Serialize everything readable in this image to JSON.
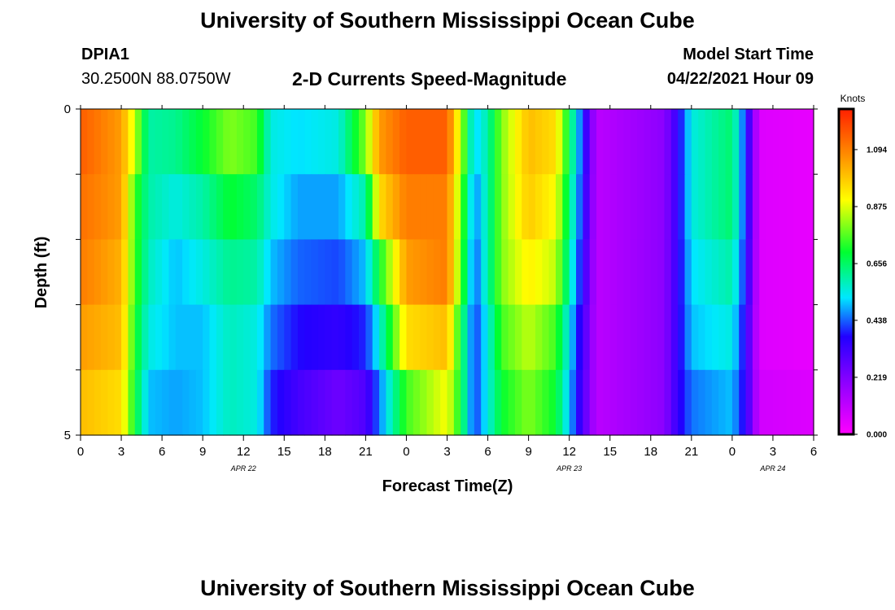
{
  "page": {
    "title_top": "University of Southern Mississippi Ocean Cube",
    "title_bottom": "University of Southern Mississippi Ocean Cube",
    "station_id": "DPIA1",
    "station_coords": "30.2500N  88.0750W",
    "product": "2-D Currents Speed-Magnitude",
    "model_start_label": "Model Start Time",
    "model_start_value": "04/22/2021 Hour 09"
  },
  "colors": {
    "scale": [
      "#ff00ff",
      "#9b00ff",
      "#2200ff",
      "#00e8ff",
      "#00ff30",
      "#ffff00",
      "#ff8c00",
      "#ff2000"
    ]
  },
  "chart_data": {
    "type": "heatmap",
    "xlabel": "Forecast Time(Z)",
    "ylabel": "Depth (ft)",
    "colorbar_label": "Knots",
    "colorbar_ticks": [
      "1.094",
      "0.875",
      "0.656",
      "0.438",
      "0.219",
      "0.000"
    ],
    "colorbar_range": [
      0.0,
      1.25
    ],
    "x_tick_labels": [
      "0",
      "3",
      "6",
      "9",
      "12",
      "15",
      "18",
      "21",
      "0",
      "3",
      "6",
      "9",
      "12",
      "15",
      "18",
      "21",
      "0",
      "3",
      "6"
    ],
    "date_labels": [
      {
        "text": "APR  22",
        "at_tick": 4
      },
      {
        "text": "APR  23",
        "at_tick": 12
      },
      {
        "text": "APR  24",
        "at_tick": 17
      }
    ],
    "y_tick_labels": [
      "0",
      "5"
    ],
    "y_range": [
      0,
      5
    ],
    "hours": 54,
    "depth_levels": 5,
    "keyframes": [
      {
        "h": 0,
        "v": [
          1.15,
          1.12,
          1.1,
          1.05,
          1.0
        ]
      },
      {
        "h": 3,
        "v": [
          1.05,
          1.05,
          1.02,
          1.0,
          0.95
        ]
      },
      {
        "h": 4,
        "v": [
          0.85,
          0.75,
          0.75,
          0.72,
          0.7
        ]
      },
      {
        "h": 5,
        "v": [
          0.6,
          0.6,
          0.58,
          0.55,
          0.5
        ]
      },
      {
        "h": 7,
        "v": [
          0.62,
          0.55,
          0.5,
          0.5,
          0.48
        ]
      },
      {
        "h": 9,
        "v": [
          0.7,
          0.6,
          0.55,
          0.5,
          0.5
        ]
      },
      {
        "h": 11,
        "v": [
          0.8,
          0.7,
          0.62,
          0.58,
          0.58
        ]
      },
      {
        "h": 13,
        "v": [
          0.75,
          0.65,
          0.6,
          0.55,
          0.55
        ]
      },
      {
        "h": 14,
        "v": [
          0.55,
          0.55,
          0.5,
          0.45,
          0.4
        ]
      },
      {
        "h": 16,
        "v": [
          0.52,
          0.48,
          0.44,
          0.38,
          0.32
        ]
      },
      {
        "h": 19,
        "v": [
          0.55,
          0.48,
          0.42,
          0.35,
          0.25
        ]
      },
      {
        "h": 21,
        "v": [
          0.8,
          0.6,
          0.5,
          0.4,
          0.3
        ]
      },
      {
        "h": 22,
        "v": [
          1.05,
          0.95,
          0.7,
          0.55,
          0.45
        ]
      },
      {
        "h": 24,
        "v": [
          1.15,
          1.1,
          1.05,
          0.95,
          0.75
        ]
      },
      {
        "h": 27,
        "v": [
          1.15,
          1.1,
          1.1,
          1.0,
          0.9
        ]
      },
      {
        "h": 28,
        "v": [
          0.85,
          0.8,
          0.78,
          0.7,
          0.7
        ]
      },
      {
        "h": 29,
        "v": [
          0.5,
          0.45,
          0.42,
          0.4,
          0.4
        ]
      },
      {
        "h": 30,
        "v": [
          0.6,
          0.6,
          0.6,
          0.55,
          0.55
        ]
      },
      {
        "h": 31,
        "v": [
          0.8,
          0.8,
          0.8,
          0.75,
          0.7
        ]
      },
      {
        "h": 33,
        "v": [
          1.0,
          0.98,
          0.92,
          0.85,
          0.8
        ]
      },
      {
        "h": 35,
        "v": [
          0.95,
          0.9,
          0.85,
          0.75,
          0.7
        ]
      },
      {
        "h": 37,
        "v": [
          0.4,
          0.38,
          0.35,
          0.32,
          0.3
        ]
      },
      {
        "h": 38,
        "v": [
          0.12,
          0.12,
          0.12,
          0.12,
          0.12
        ]
      },
      {
        "h": 43,
        "v": [
          0.2,
          0.2,
          0.2,
          0.2,
          0.2
        ]
      },
      {
        "h": 44,
        "v": [
          0.35,
          0.35,
          0.35,
          0.35,
          0.35
        ]
      },
      {
        "h": 45,
        "v": [
          0.55,
          0.55,
          0.52,
          0.5,
          0.45
        ]
      },
      {
        "h": 48,
        "v": [
          0.65,
          0.65,
          0.6,
          0.55,
          0.5
        ]
      },
      {
        "h": 49,
        "v": [
          0.4,
          0.4,
          0.38,
          0.35,
          0.35
        ]
      },
      {
        "h": 50,
        "v": [
          0.06,
          0.06,
          0.06,
          0.06,
          0.08
        ]
      },
      {
        "h": 54,
        "v": [
          0.04,
          0.04,
          0.04,
          0.04,
          0.06
        ]
      }
    ]
  }
}
